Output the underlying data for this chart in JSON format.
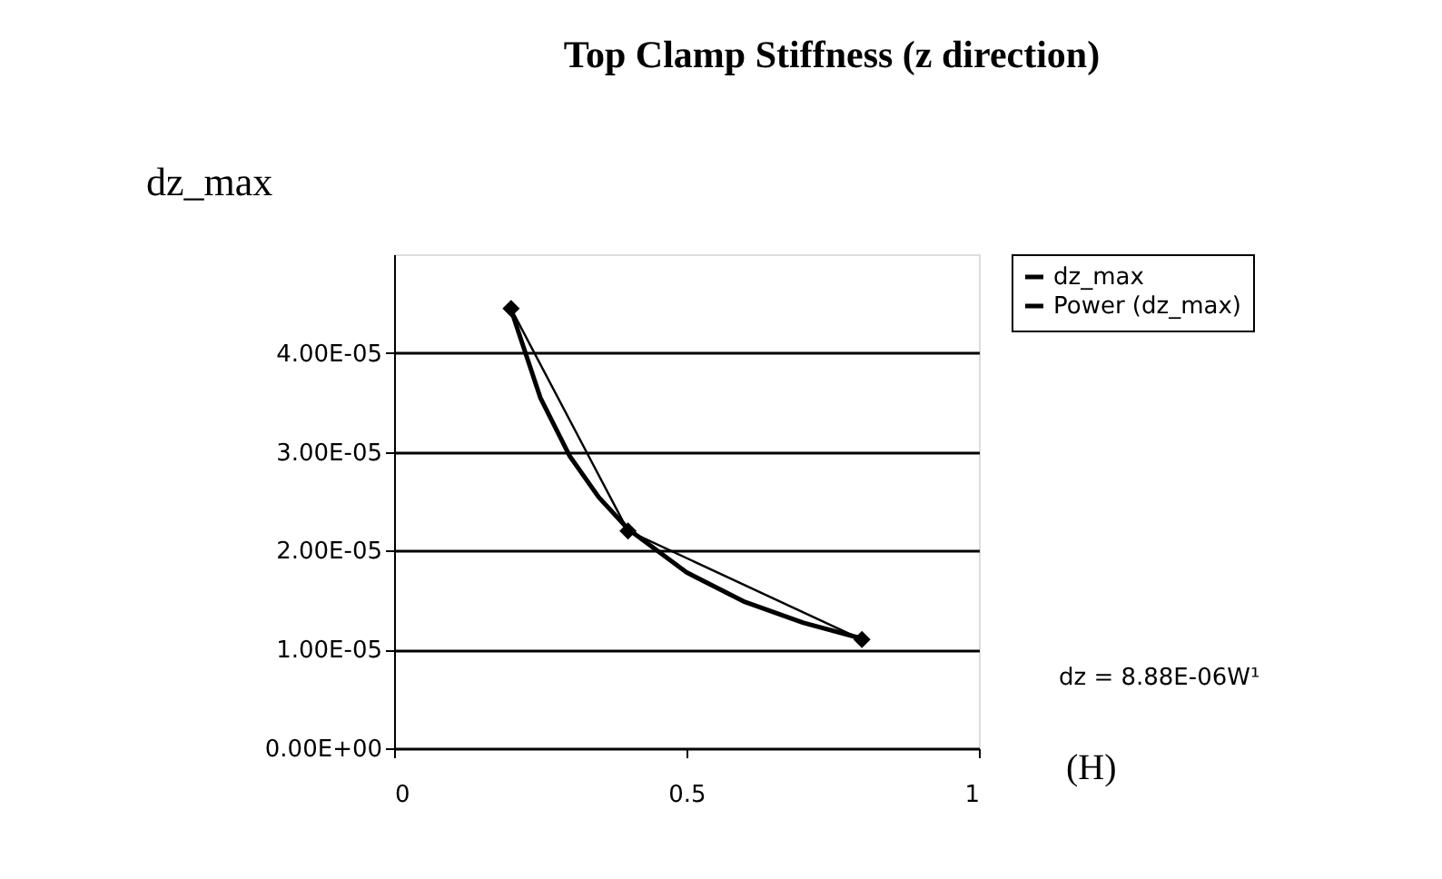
{
  "chart_data": {
    "type": "line",
    "title": "Top Clamp Stiffness (z direction)",
    "ylabel": "dz_max",
    "series": [
      {
        "name": "dz_max",
        "color": "#000000",
        "marker": "diamond",
        "x": [
          0.2,
          0.4,
          0.8
        ],
        "values": [
          4.45e-05,
          2.2e-05,
          1.1e-05
        ]
      },
      {
        "name": "Power (dz_max)",
        "color": "#000000",
        "marker": "none",
        "x": [
          0.2,
          0.25,
          0.3,
          0.35,
          0.4,
          0.5,
          0.6,
          0.7,
          0.8
        ],
        "values": [
          4.44e-05,
          3.55e-05,
          2.96e-05,
          2.54e-05,
          2.22e-05,
          1.78e-05,
          1.48e-05,
          1.27e-05,
          1.11e-05
        ]
      }
    ],
    "xlim": [
      0,
      1
    ],
    "xticks": [
      0,
      0.5,
      1
    ],
    "ylim": [
      0,
      5e-05
    ],
    "yticks": [
      {
        "value": 0,
        "label": "0.00E+00"
      },
      {
        "value": 1e-05,
        "label": "1.00E-05"
      },
      {
        "value": 2e-05,
        "label": "2.00E-05"
      },
      {
        "value": 3e-05,
        "label": "3.00E-05"
      },
      {
        "value": 4e-05,
        "label": "4.00E-05"
      }
    ],
    "grid": "y",
    "legend": "right",
    "annotations": [
      "dz = 8.88E-06W¹",
      "(H)"
    ]
  }
}
